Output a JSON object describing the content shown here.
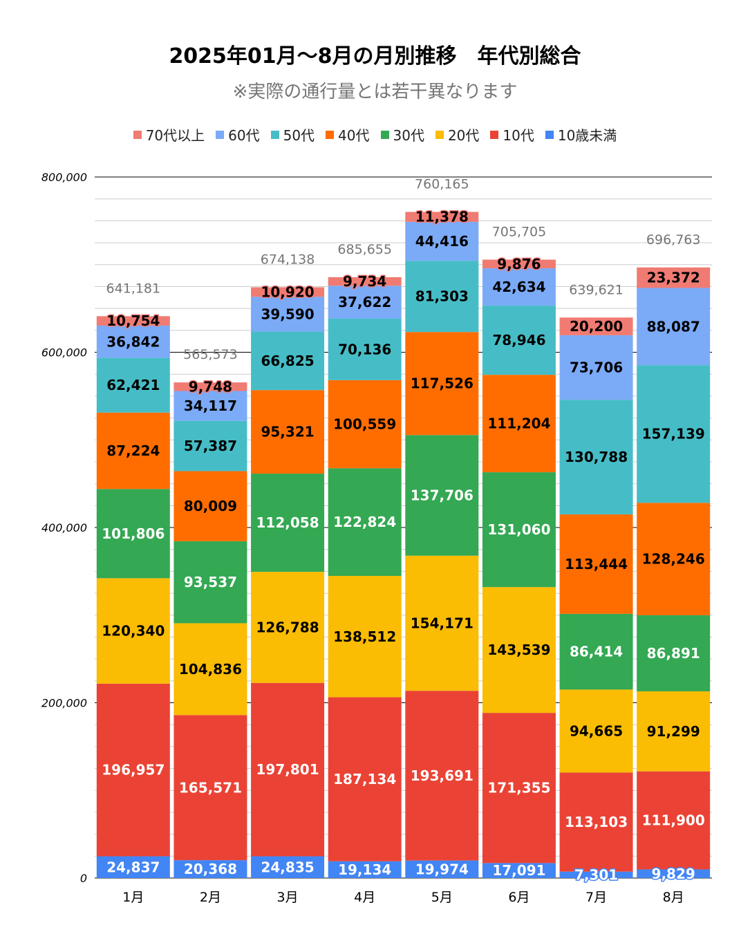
{
  "chart_data": {
    "type": "bar",
    "stacked": true,
    "title": "2025年01月～8月の月別推移　年代別総合",
    "subtitle": "※実際の通行量とは若干異なります",
    "xlabel": "",
    "ylabel": "",
    "ylim": [
      0,
      800000
    ],
    "yticks": [
      0,
      200000,
      400000,
      600000,
      800000
    ],
    "ytick_labels": [
      "0",
      "200,000",
      "400,000",
      "600,000",
      "800,000"
    ],
    "minor_grid_step": 25000,
    "grid": true,
    "legend_position": "top",
    "categories": [
      "1月",
      "2月",
      "3月",
      "4月",
      "5月",
      "6月",
      "7月",
      "8月"
    ],
    "totals": [
      641181,
      565573,
      674138,
      685655,
      760165,
      705705,
      639621,
      696763
    ],
    "total_labels": [
      "641,181",
      "565,573",
      "674,138",
      "685,655",
      "760,165",
      "705,705",
      "639,621",
      "696,763"
    ],
    "legend_order": [
      "70代以上",
      "60代",
      "50代",
      "40代",
      "30代",
      "20代",
      "10代",
      "10歳未満"
    ],
    "series": [
      {
        "name": "10歳未満",
        "color": "#4285f4",
        "label_color": "#ffffff",
        "values": [
          24837,
          20368,
          24835,
          19134,
          19974,
          17091,
          7301,
          9829
        ]
      },
      {
        "name": "10代",
        "color": "#ea4335",
        "label_color": "#ffffff",
        "values": [
          196957,
          165571,
          197801,
          187134,
          193691,
          171355,
          113103,
          111900
        ]
      },
      {
        "name": "20代",
        "color": "#fbbc04",
        "label_color": "#000000",
        "values": [
          120340,
          104836,
          126788,
          138512,
          154171,
          143539,
          94665,
          91299
        ]
      },
      {
        "name": "30代",
        "color": "#34a853",
        "label_color": "#ffffff",
        "values": [
          101806,
          93537,
          112058,
          122824,
          137706,
          131060,
          86414,
          86891
        ]
      },
      {
        "name": "40代",
        "color": "#ff6d01",
        "label_color": "#000000",
        "values": [
          87224,
          80009,
          95321,
          100559,
          117526,
          111204,
          113444,
          128246
        ]
      },
      {
        "name": "50代",
        "color": "#46bdc6",
        "label_color": "#000000",
        "values": [
          62421,
          57387,
          66825,
          70136,
          81303,
          78946,
          130788,
          157139
        ]
      },
      {
        "name": "60代",
        "color": "#7baaf7",
        "label_color": "#000000",
        "values": [
          36842,
          34117,
          39590,
          37622,
          44416,
          42634,
          73706,
          88087
        ]
      },
      {
        "name": "70代以上",
        "color": "#f07b72",
        "label_color": "#000000",
        "values": [
          10754,
          9748,
          10920,
          9734,
          11378,
          9876,
          20200,
          23372
        ]
      }
    ]
  }
}
